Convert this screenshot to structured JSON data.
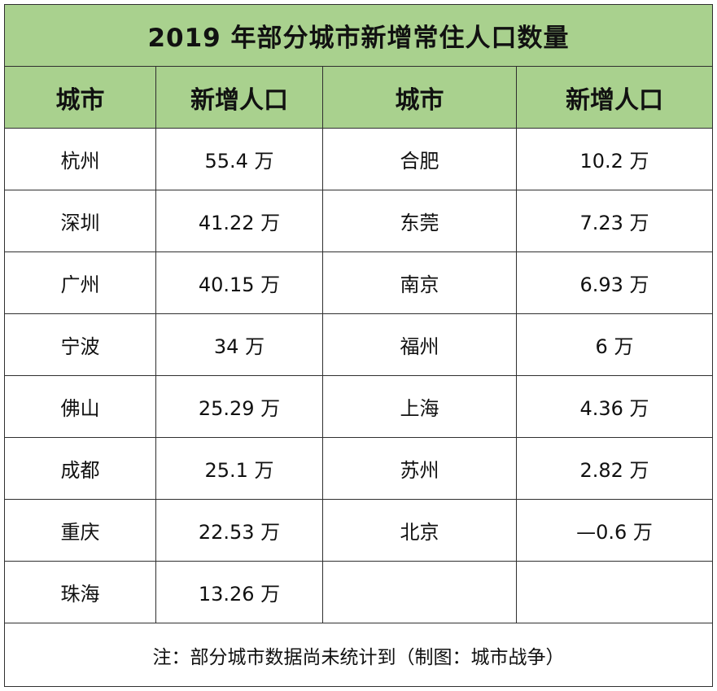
{
  "title": "2019 年部分城市新增常住人口数量",
  "headers": [
    "城市",
    "新增人口",
    "城市",
    "新增人口"
  ],
  "rows": [
    {
      "city_left": "杭州",
      "value_left": "55.4 万",
      "city_right": "合肥",
      "value_right": "10.2 万"
    },
    {
      "city_left": "深圳",
      "value_left": "41.22 万",
      "city_right": "东莞",
      "value_right": "7.23 万"
    },
    {
      "city_left": "广州",
      "value_left": "40.15 万",
      "city_right": "南京",
      "value_right": "6.93 万"
    },
    {
      "city_left": "宁波",
      "value_left": "34 万",
      "city_right": "福州",
      "value_right": "6 万"
    },
    {
      "city_left": "佛山",
      "value_left": "25.29 万",
      "city_right": "上海",
      "value_right": "4.36 万"
    },
    {
      "city_left": "成都",
      "value_left": "25.1 万",
      "city_right": "苏州",
      "value_right": "2.82 万"
    },
    {
      "city_left": "重庆",
      "value_left": "22.53 万",
      "city_right": "北京",
      "value_right": "—0.6 万"
    },
    {
      "city_left": "珠海",
      "value_left": "13.26 万",
      "city_right": "",
      "value_right": ""
    }
  ],
  "note": "注：部分城市数据尚未统计到（制图：城市战争）",
  "colors": {
    "header_bg": "#a9d18e",
    "border": "#2f2f2f"
  }
}
